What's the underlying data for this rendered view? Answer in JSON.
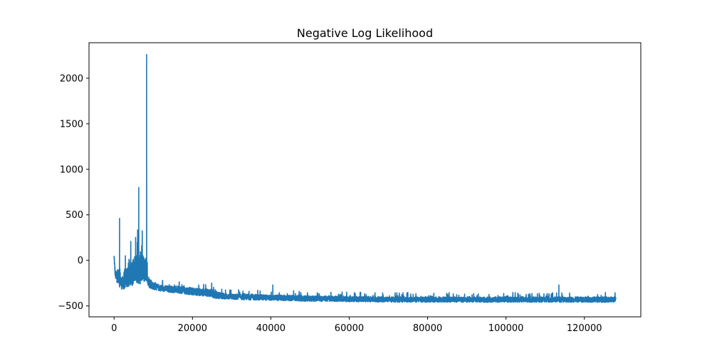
{
  "chart_data": {
    "type": "line",
    "title": "Negative Log Likelihood",
    "xlabel": "",
    "ylabel": "",
    "xlim": [
      -6400,
      134400
    ],
    "ylim": [
      -620,
      2390
    ],
    "xticks": [
      0,
      20000,
      40000,
      60000,
      80000,
      100000,
      120000
    ],
    "xtick_labels": [
      "0",
      "20000",
      "40000",
      "60000",
      "80000",
      "100000",
      "120000"
    ],
    "yticks": [
      -500,
      0,
      500,
      1000,
      1500,
      2000
    ],
    "ytick_labels": [
      "−500",
      "0",
      "500",
      "1000",
      "1500",
      "2000"
    ],
    "grid": false,
    "legend": false,
    "series": [
      {
        "color": "#1f77b4",
        "x": [
          0,
          300,
          600,
          1000,
          1200,
          1400,
          1500,
          1700,
          2000,
          2500,
          3000,
          3500,
          4000,
          4500,
          5000,
          5500,
          6000,
          6200,
          6500,
          6800,
          7000,
          7500,
          8000,
          8300,
          8500,
          8700,
          9000,
          9500,
          10000,
          11000,
          12000,
          14000,
          16000,
          18000,
          20000,
          22000,
          24000,
          25000,
          26000,
          28000,
          30000,
          35000,
          40000,
          45000,
          50000,
          55000,
          60000,
          65000,
          70000,
          75000,
          80000,
          85000,
          90000,
          95000,
          100000,
          105000,
          110000,
          115000,
          120000,
          125000,
          128000
        ],
        "y_mid": [
          30,
          -160,
          -190,
          -200,
          -170,
          -250,
          -190,
          -230,
          -260,
          -240,
          -230,
          -200,
          -190,
          -180,
          -160,
          -150,
          -140,
          -150,
          -170,
          -150,
          -160,
          -150,
          -140,
          -120,
          -160,
          -200,
          -230,
          -260,
          -280,
          -290,
          -300,
          -310,
          -315,
          -320,
          -330,
          -340,
          -350,
          -370,
          -390,
          -395,
          -400,
          -405,
          -410,
          -415,
          -420,
          -420,
          -425,
          -425,
          -425,
          -430,
          -430,
          -430,
          -430,
          -430,
          -430,
          -430,
          -430,
          -430,
          -430,
          -430,
          -430
        ],
        "y_low": [
          0,
          -200,
          -240,
          -250,
          -230,
          -300,
          -280,
          -310,
          -320,
          -320,
          -310,
          -300,
          -290,
          -280,
          -270,
          -260,
          -250,
          -260,
          -270,
          -260,
          -260,
          -250,
          -240,
          -230,
          -260,
          -280,
          -300,
          -310,
          -320,
          -330,
          -340,
          -350,
          -360,
          -370,
          -380,
          -390,
          -395,
          -410,
          -420,
          -425,
          -430,
          -435,
          -440,
          -445,
          -450,
          -450,
          -455,
          -455,
          -460,
          -460,
          -460,
          -460,
          -460,
          -460,
          -460,
          -460,
          -460,
          -460,
          -460,
          -460,
          -460
        ],
        "y_high": [
          50,
          -100,
          -140,
          -150,
          -80,
          -200,
          -100,
          -150,
          -200,
          -120,
          -60,
          -30,
          0,
          20,
          40,
          60,
          100,
          70,
          80,
          100,
          80,
          60,
          40,
          -20,
          -100,
          -150,
          -190,
          -220,
          -240,
          -260,
          -270,
          -280,
          -280,
          -290,
          -300,
          -310,
          -310,
          -320,
          -340,
          -360,
          -370,
          -370,
          -380,
          -380,
          -390,
          -390,
          -395,
          -395,
          -400,
          -400,
          -400,
          -400,
          -400,
          -400,
          -400,
          -400,
          -400,
          -400,
          -400,
          -400,
          -400
        ],
        "spikes": [
          {
            "x": 0,
            "y": 45
          },
          {
            "x": 1400,
            "y": 460
          },
          {
            "x": 5900,
            "y": 90
          },
          {
            "x": 6300,
            "y": 800
          },
          {
            "x": 8300,
            "y": 2260
          },
          {
            "x": 40500,
            "y": -270
          },
          {
            "x": 113500,
            "y": -270
          }
        ]
      }
    ]
  }
}
